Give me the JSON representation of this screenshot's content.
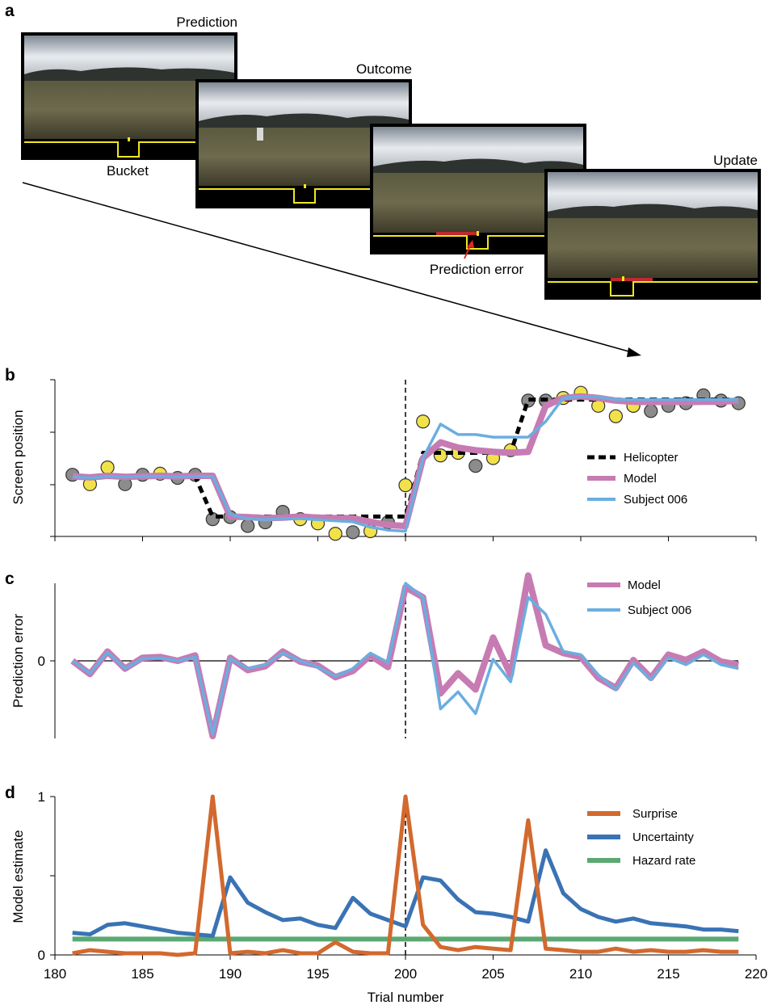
{
  "panel_labels": {
    "a": "a",
    "b": "b",
    "c": "c",
    "d": "d"
  },
  "screens": {
    "prediction_label": "Prediction",
    "outcome_label": "Outcome",
    "update_label": "Update",
    "bucket_label": "Bucket",
    "prediction_error_label": "Prediction error"
  },
  "colors": {
    "helicopter": "#000000",
    "model": "#c77bb3",
    "subject": "#6aaee0",
    "dot_gray": "#8c8c8c",
    "dot_yellow": "#f2e24a",
    "surprise": "#d2692e",
    "uncertainty": "#3a73b4",
    "hazard": "#5aa872",
    "screen_frame": "#000000",
    "bucket_line": "#f2e620",
    "error_bar": "#c0282c"
  },
  "chart_data": [
    {
      "id": "b",
      "type": "line",
      "ylabel": "Screen position",
      "xlim": [
        180,
        220
      ],
      "ylim": [
        0,
        3
      ],
      "change_point_x": 200,
      "x": [
        181,
        182,
        183,
        184,
        185,
        186,
        187,
        188,
        189,
        190,
        191,
        192,
        193,
        194,
        195,
        196,
        197,
        198,
        199,
        200,
        201,
        202,
        203,
        204,
        205,
        206,
        207,
        208,
        209,
        210,
        211,
        212,
        213,
        214,
        215,
        216,
        217,
        218,
        219
      ],
      "outcomes": {
        "gray_x": [
          181,
          184,
          185,
          187,
          188,
          189,
          190,
          191,
          192,
          193,
          197,
          199,
          204,
          207,
          208,
          213,
          214,
          215,
          216,
          217,
          218,
          219
        ],
        "gray_y": [
          1.18,
          1.0,
          1.18,
          1.12,
          1.18,
          0.33,
          0.37,
          0.2,
          0.27,
          0.47,
          0.08,
          0.27,
          1.35,
          2.6,
          2.6,
          2.5,
          2.4,
          2.5,
          2.55,
          2.7,
          2.6,
          2.55
        ],
        "yellow_x": [
          182,
          183,
          186,
          194,
          195,
          196,
          198,
          200,
          201,
          202,
          203,
          205,
          206,
          209,
          210,
          211,
          212,
          213
        ],
        "yellow_y": [
          1.0,
          1.32,
          1.2,
          0.33,
          0.25,
          0.05,
          0.1,
          0.98,
          2.2,
          1.55,
          1.6,
          1.5,
          1.65,
          2.65,
          2.75,
          2.5,
          2.3,
          2.5
        ]
      },
      "series": [
        {
          "name": "Helicopter",
          "style": "dashed",
          "values": [
            1.15,
            1.15,
            1.15,
            1.15,
            1.15,
            1.15,
            1.15,
            1.15,
            0.38,
            0.38,
            0.38,
            0.38,
            0.38,
            0.38,
            0.38,
            0.38,
            0.38,
            0.38,
            0.38,
            0.38,
            1.6,
            1.6,
            1.6,
            1.6,
            1.6,
            1.6,
            2.62,
            2.62,
            2.62,
            2.62,
            2.62,
            2.62,
            2.62,
            2.62,
            2.62,
            2.62,
            2.62,
            2.62,
            2.62
          ]
        },
        {
          "name": "Model",
          "values": [
            1.15,
            1.13,
            1.16,
            1.14,
            1.15,
            1.16,
            1.15,
            1.16,
            1.16,
            0.38,
            0.37,
            0.35,
            0.36,
            0.38,
            0.36,
            0.35,
            0.35,
            0.28,
            0.22,
            0.2,
            1.5,
            1.8,
            1.7,
            1.65,
            1.62,
            1.6,
            1.62,
            2.5,
            2.65,
            2.68,
            2.65,
            2.6,
            2.58,
            2.57,
            2.58,
            2.57,
            2.58,
            2.58,
            2.6
          ]
        },
        {
          "name": "Subject 006",
          "values": [
            1.15,
            1.12,
            1.15,
            1.14,
            1.15,
            1.15,
            1.14,
            1.15,
            1.15,
            0.42,
            0.34,
            0.32,
            0.34,
            0.34,
            0.32,
            0.3,
            0.28,
            0.18,
            0.12,
            0.1,
            1.5,
            2.15,
            1.95,
            1.95,
            1.9,
            1.9,
            1.9,
            2.2,
            2.65,
            2.68,
            2.67,
            2.62,
            2.62,
            2.62,
            2.62,
            2.62,
            2.62,
            2.62,
            2.62
          ]
        }
      ]
    },
    {
      "id": "c",
      "type": "line",
      "ylabel": "Prediction error",
      "xlim": [
        180,
        220
      ],
      "ylim": [
        -1,
        1.1
      ],
      "yticks": [
        0
      ],
      "ytick_labels": [
        "0"
      ],
      "change_point_x": 200,
      "x": [
        181,
        182,
        183,
        184,
        185,
        186,
        187,
        188,
        189,
        190,
        191,
        192,
        193,
        194,
        195,
        196,
        197,
        198,
        199,
        200,
        201,
        202,
        203,
        204,
        205,
        206,
        207,
        208,
        209,
        210,
        211,
        212,
        213,
        214,
        215,
        216,
        217,
        218,
        219
      ],
      "series": [
        {
          "name": "Model",
          "values": [
            0.0,
            -0.17,
            0.12,
            -0.1,
            0.04,
            0.05,
            0.0,
            0.07,
            -0.97,
            0.04,
            -0.12,
            -0.07,
            0.12,
            -0.01,
            -0.06,
            -0.21,
            -0.13,
            0.07,
            -0.08,
            0.95,
            0.82,
            -0.42,
            -0.16,
            -0.37,
            0.3,
            -0.18,
            1.1,
            0.2,
            0.1,
            0.05,
            -0.22,
            -0.35,
            0.01,
            -0.22,
            0.08,
            0.01,
            0.12,
            -0.01,
            -0.05
          ]
        },
        {
          "name": "Subject 006",
          "values": [
            0.0,
            -0.16,
            0.11,
            -0.1,
            0.03,
            0.04,
            0.0,
            0.05,
            -0.95,
            0.03,
            -0.1,
            -0.05,
            0.1,
            0.0,
            -0.08,
            -0.2,
            -0.1,
            0.1,
            -0.02,
            1.0,
            0.82,
            -0.62,
            -0.4,
            -0.68,
            0.02,
            -0.27,
            0.82,
            0.6,
            0.12,
            0.08,
            -0.18,
            -0.37,
            -0.03,
            -0.24,
            0.04,
            -0.05,
            0.08,
            -0.05,
            -0.1
          ]
        }
      ]
    },
    {
      "id": "d",
      "type": "line",
      "xlabel": "Trial number",
      "ylabel": "Model estimate",
      "xlim": [
        180,
        220
      ],
      "xticks": [
        180,
        185,
        190,
        195,
        200,
        205,
        210,
        215,
        220
      ],
      "ylim": [
        0,
        1
      ],
      "yticks": [
        0,
        1
      ],
      "ytick_labels": [
        "0",
        "1"
      ],
      "change_point_x": 200,
      "x": [
        181,
        182,
        183,
        184,
        185,
        186,
        187,
        188,
        189,
        190,
        191,
        192,
        193,
        194,
        195,
        196,
        197,
        198,
        199,
        200,
        201,
        202,
        203,
        204,
        205,
        206,
        207,
        208,
        209,
        210,
        211,
        212,
        213,
        214,
        215,
        216,
        217,
        218,
        219
      ],
      "series": [
        {
          "name": "Surprise",
          "values": [
            0.01,
            0.03,
            0.02,
            0.01,
            0.01,
            0.01,
            0.0,
            0.01,
            1.0,
            0.01,
            0.02,
            0.01,
            0.03,
            0.01,
            0.01,
            0.08,
            0.02,
            0.01,
            0.01,
            1.0,
            0.19,
            0.05,
            0.03,
            0.05,
            0.04,
            0.03,
            0.85,
            0.04,
            0.03,
            0.02,
            0.02,
            0.04,
            0.02,
            0.03,
            0.02,
            0.02,
            0.03,
            0.02,
            0.02
          ]
        },
        {
          "name": "Uncertainty",
          "values": [
            0.14,
            0.13,
            0.19,
            0.2,
            0.18,
            0.16,
            0.14,
            0.13,
            0.12,
            0.49,
            0.33,
            0.27,
            0.22,
            0.23,
            0.19,
            0.17,
            0.36,
            0.26,
            0.22,
            0.18,
            0.49,
            0.47,
            0.35,
            0.27,
            0.26,
            0.24,
            0.21,
            0.66,
            0.39,
            0.29,
            0.24,
            0.21,
            0.23,
            0.2,
            0.19,
            0.18,
            0.16,
            0.16,
            0.15
          ]
        },
        {
          "name": "Hazard rate",
          "values": [
            0.1,
            0.1,
            0.1,
            0.1,
            0.1,
            0.1,
            0.1,
            0.1,
            0.1,
            0.1,
            0.1,
            0.1,
            0.1,
            0.1,
            0.1,
            0.1,
            0.1,
            0.1,
            0.1,
            0.1,
            0.1,
            0.1,
            0.1,
            0.1,
            0.1,
            0.1,
            0.1,
            0.1,
            0.1,
            0.1,
            0.1,
            0.1,
            0.1,
            0.1,
            0.1,
            0.1,
            0.1,
            0.1,
            0.1
          ]
        }
      ]
    }
  ]
}
